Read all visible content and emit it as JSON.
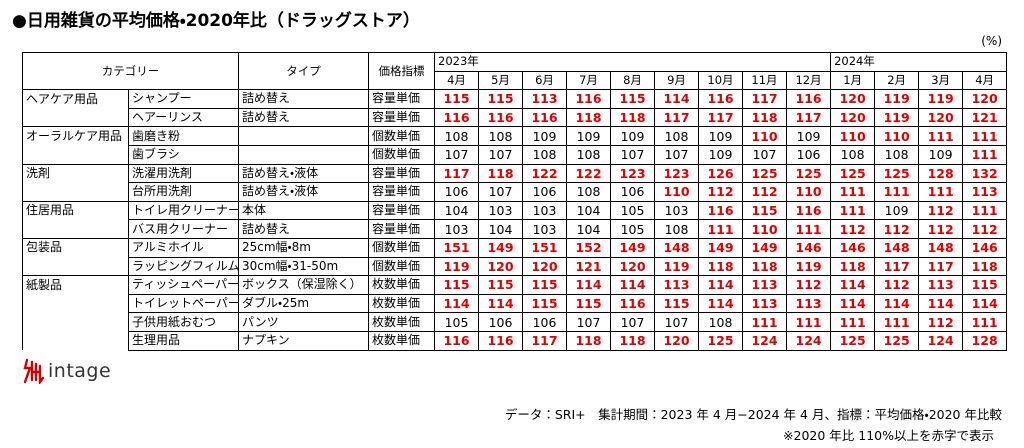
{
  "header": {
    "title": "●日用雑貨の平均価格・2020年比（ドラッグストア）",
    "unit": "(%)"
  },
  "table": {
    "columns": {
      "category": "カテゴリー",
      "type": "タイプ",
      "index": "価格指標",
      "years": [
        {
          "label": "2023年",
          "span": 9
        },
        {
          "label": "2024年",
          "span": 4
        }
      ],
      "months": [
        "4月",
        "5月",
        "6月",
        "7月",
        "8月",
        "9月",
        "10月",
        "11月",
        "12月",
        "1月",
        "2月",
        "3月",
        "4月"
      ]
    },
    "highlight": {
      "min": 110,
      "color": "#e00000"
    },
    "groups": [
      {
        "category": "ヘアケア用品",
        "items": [
          {
            "item": "シャンプー",
            "type": "詰め替え",
            "index": "容量単価",
            "values": [
              115,
              115,
              113,
              116,
              115,
              114,
              116,
              117,
              116,
              120,
              119,
              119,
              120
            ]
          },
          {
            "item": "ヘアーリンス",
            "type": "詰め替え",
            "index": "容量単価",
            "values": [
              116,
              116,
              116,
              118,
              118,
              117,
              117,
              118,
              117,
              120,
              119,
              120,
              121
            ]
          }
        ]
      },
      {
        "category": "オーラルケア用品",
        "items": [
          {
            "item": "歯磨き粉",
            "type": null,
            "index": "個数単価",
            "values": [
              108,
              108,
              109,
              109,
              109,
              108,
              109,
              110,
              109,
              110,
              110,
              111,
              111
            ]
          },
          {
            "item": "歯ブラシ",
            "type": null,
            "index": "個数単価",
            "values": [
              107,
              107,
              108,
              108,
              107,
              107,
              109,
              107,
              106,
              108,
              108,
              109,
              111
            ]
          }
        ]
      },
      {
        "category": "洗剤",
        "items": [
          {
            "item": "洗濯用洗剤",
            "type": "詰め替え・液体",
            "index": "容量単価",
            "values": [
              117,
              118,
              122,
              122,
              123,
              123,
              126,
              125,
              125,
              125,
              125,
              128,
              132
            ]
          },
          {
            "item": "台所用洗剤",
            "type": "詰め替え・液体",
            "index": "容量単価",
            "values": [
              106,
              107,
              106,
              108,
              106,
              110,
              112,
              112,
              110,
              111,
              111,
              111,
              113
            ]
          }
        ]
      },
      {
        "category": "住居用品",
        "items": [
          {
            "item": "トイレ用クリーナー",
            "type": "本体",
            "index": "容量単価",
            "values": [
              104,
              103,
              103,
              104,
              105,
              103,
              116,
              115,
              116,
              111,
              109,
              112,
              111
            ]
          },
          {
            "item": "バス用クリーナー",
            "type": "詰め替え",
            "index": "容量単価",
            "values": [
              103,
              104,
              103,
              104,
              105,
              108,
              111,
              110,
              111,
              112,
              112,
              112,
              112
            ]
          }
        ]
      },
      {
        "category": "包装品",
        "items": [
          {
            "item": "アルミホイル",
            "type": "25cm幅・8m",
            "index": "個数単価",
            "values": [
              151,
              149,
              151,
              152,
              149,
              148,
              149,
              149,
              146,
              146,
              148,
              148,
              146
            ]
          },
          {
            "item": "ラッピングフィルム",
            "type": "30cm幅・31-50m",
            "index": "個数単価",
            "values": [
              119,
              120,
              120,
              121,
              120,
              119,
              118,
              118,
              119,
              118,
              117,
              117,
              118
            ]
          }
        ]
      },
      {
        "category": "紙製品",
        "items": [
          {
            "item": "ティッシュペーパー",
            "type": "ボックス（保湿除く）",
            "index": "枚数単価",
            "values": [
              115,
              115,
              115,
              114,
              114,
              113,
              114,
              113,
              112,
              114,
              112,
              113,
              115
            ]
          },
          {
            "item": "トイレットペーパー",
            "type": "ダブル・25m",
            "index": "枚数単価",
            "values": [
              114,
              114,
              115,
              115,
              116,
              115,
              114,
              113,
              113,
              114,
              114,
              114,
              114
            ]
          },
          {
            "item": "子供用紙おむつ",
            "type": "パンツ",
            "index": "枚数単価",
            "values": [
              105,
              106,
              106,
              107,
              107,
              107,
              108,
              111,
              111,
              111,
              111,
              112,
              111
            ]
          },
          {
            "item": "生理用品",
            "type": "ナプキン",
            "index": "枚数単価",
            "values": [
              116,
              116,
              117,
              118,
              118,
              120,
              125,
              124,
              124,
              125,
              125,
              124,
              128
            ]
          }
        ]
      }
    ]
  },
  "footer": {
    "logo": "intage",
    "source": "データ：SRI+　集計期間：2023 年 4 月−2024 年 4 月、指標：平均価格・2020 年比較",
    "note": "※2020 年比 110%以上を赤字で表示"
  }
}
